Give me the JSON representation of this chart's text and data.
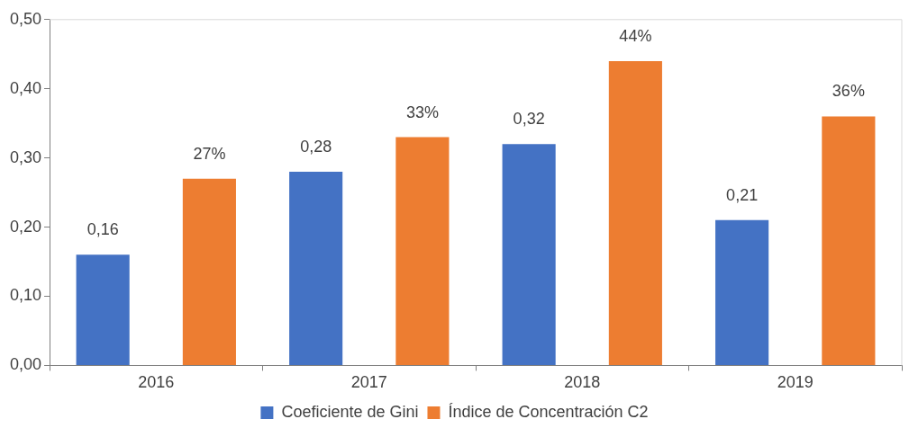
{
  "chart_data": {
    "type": "bar",
    "categories": [
      "2016",
      "2017",
      "2018",
      "2019"
    ],
    "series": [
      {
        "name": "Coeficiente de Gini",
        "color": "#4472c4",
        "values": [
          0.16,
          0.28,
          0.32,
          0.21
        ],
        "value_labels": [
          "0,16",
          "0,28",
          "0,32",
          "0,21"
        ]
      },
      {
        "name": "Índice de Concentración C2",
        "color": "#ed7d31",
        "values": [
          0.27,
          0.33,
          0.44,
          0.36
        ],
        "value_labels": [
          "27%",
          "33%",
          "44%",
          "36%"
        ]
      }
    ],
    "ylim": [
      0,
      0.5
    ],
    "yticks": [
      {
        "value": 0,
        "label": "0,00"
      },
      {
        "value": 0.1,
        "label": "0,10"
      },
      {
        "value": 0.2,
        "label": "0,20"
      },
      {
        "value": 0.3,
        "label": "0,30"
      },
      {
        "value": 0.4,
        "label": "0,40"
      },
      {
        "value": 0.5,
        "label": "0,50"
      }
    ],
    "grid": false,
    "legend": "bottom"
  }
}
